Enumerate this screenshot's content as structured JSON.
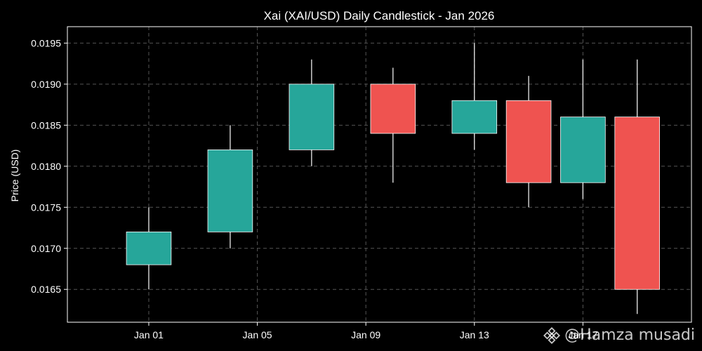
{
  "chart_data": {
    "type": "candlestick",
    "title": "Xai (XAI/USD) Daily Candlestick - Jan 2026",
    "xlabel": "",
    "ylabel": "Price (USD)",
    "ylim": [
      0.0161,
      0.0197
    ],
    "xlim": [
      "2025-12-29",
      "2026-01-21"
    ],
    "yticks": [
      "0.0165",
      "0.0170",
      "0.0175",
      "0.0180",
      "0.0185",
      "0.0190",
      "0.0195"
    ],
    "xticks": [
      {
        "date": "2026-01-01",
        "label": "Jan 01"
      },
      {
        "date": "2026-01-05",
        "label": "Jan 05"
      },
      {
        "date": "2026-01-09",
        "label": "Jan 09"
      },
      {
        "date": "2026-01-13",
        "label": "Jan 13"
      },
      {
        "date": "2026-01-17",
        "label": "Jan 17"
      }
    ],
    "grid": true,
    "up_color": "#26a69a",
    "down_color": "#ef5350",
    "candles": [
      {
        "date": "2026-01-01",
        "open": 0.0168,
        "high": 0.0175,
        "low": 0.0165,
        "close": 0.0172
      },
      {
        "date": "2026-01-04",
        "open": 0.0172,
        "high": 0.0185,
        "low": 0.017,
        "close": 0.0182
      },
      {
        "date": "2026-01-07",
        "open": 0.0182,
        "high": 0.0193,
        "low": 0.018,
        "close": 0.019
      },
      {
        "date": "2026-01-10",
        "open": 0.019,
        "high": 0.0192,
        "low": 0.0178,
        "close": 0.0184
      },
      {
        "date": "2026-01-13",
        "open": 0.0184,
        "high": 0.0195,
        "low": 0.0182,
        "close": 0.0188
      },
      {
        "date": "2026-01-15",
        "open": 0.0188,
        "high": 0.0191,
        "low": 0.0175,
        "close": 0.0178
      },
      {
        "date": "2026-01-17",
        "open": 0.0178,
        "high": 0.0193,
        "low": 0.0176,
        "close": 0.0186
      },
      {
        "date": "2026-01-19",
        "open": 0.0186,
        "high": 0.0193,
        "low": 0.0162,
        "close": 0.0165
      }
    ]
  },
  "watermark": {
    "text": "@Hamza musadi",
    "icon": "binance-logo-icon",
    "color": "#ffffff"
  }
}
